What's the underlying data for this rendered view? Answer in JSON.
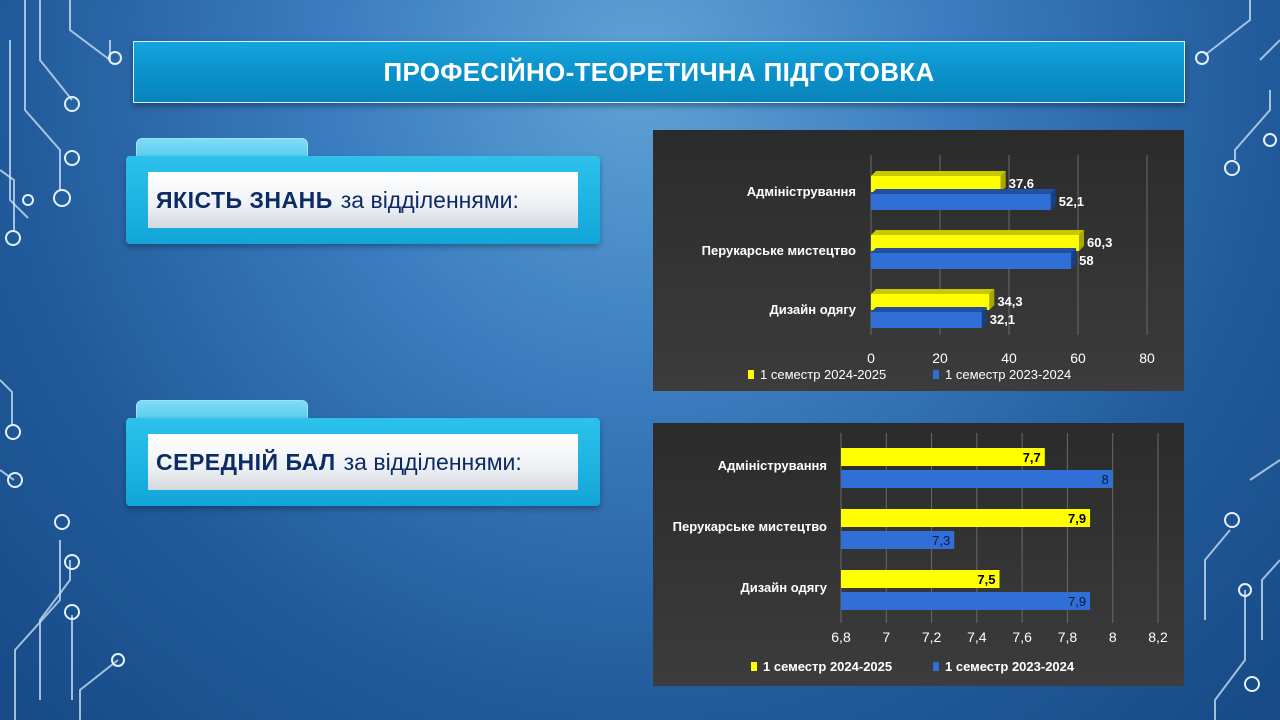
{
  "slide": {
    "title": "ПРОФЕСІЙНО-ТЕОРЕТИЧНА ПІДГОТОВКА",
    "colors": {
      "accent": "#12a6d8",
      "series_2024_2025": "#ffff00",
      "series_2023_2024": "#2f6fd6"
    }
  },
  "sections": [
    {
      "bold_label": "ЯКІСТЬ ЗНАНЬ",
      "rest_label": "за відділеннями:"
    },
    {
      "bold_label": "СЕРЕДНІЙ БАЛ",
      "rest_label": "за відділеннями:"
    }
  ],
  "chart_data": [
    {
      "type": "bar",
      "orientation": "horizontal",
      "categories": [
        "Адміністрування",
        "Перукарське мистецтво",
        "Дизайн одягу"
      ],
      "series": [
        {
          "name": "1 семестр 2024-2025",
          "values": [
            37.6,
            60.3,
            34.3
          ]
        },
        {
          "name": "1 семестр 2023-2024",
          "values": [
            52.1,
            58,
            32.1
          ]
        }
      ],
      "value_labels": [
        [
          "37,6",
          "60,3",
          "34,3"
        ],
        [
          "52,1",
          "58",
          "32,1"
        ]
      ],
      "xlim": [
        0,
        80
      ],
      "x_ticks": [
        "0",
        "20",
        "40",
        "60",
        "80"
      ],
      "grid": true,
      "legend": "bottom"
    },
    {
      "type": "bar",
      "orientation": "horizontal",
      "categories": [
        "Адміністрування",
        "Перукарське мистецтво",
        "Дизайн одягу"
      ],
      "series": [
        {
          "name": "1 семестр 2024-2025",
          "values": [
            7.7,
            7.9,
            7.5
          ]
        },
        {
          "name": "1 семестр 2023-2024",
          "values": [
            8,
            7.3,
            7.9
          ]
        }
      ],
      "value_labels": [
        [
          "7,7",
          "7,9",
          "7,5"
        ],
        [
          "8",
          "7,3",
          "7,9"
        ]
      ],
      "xlim": [
        6.8,
        8.2
      ],
      "x_ticks": [
        "6,8",
        "7",
        "7,2",
        "7,4",
        "7,6",
        "7,8",
        "8",
        "8,2"
      ],
      "grid": true,
      "legend": "bottom"
    }
  ]
}
